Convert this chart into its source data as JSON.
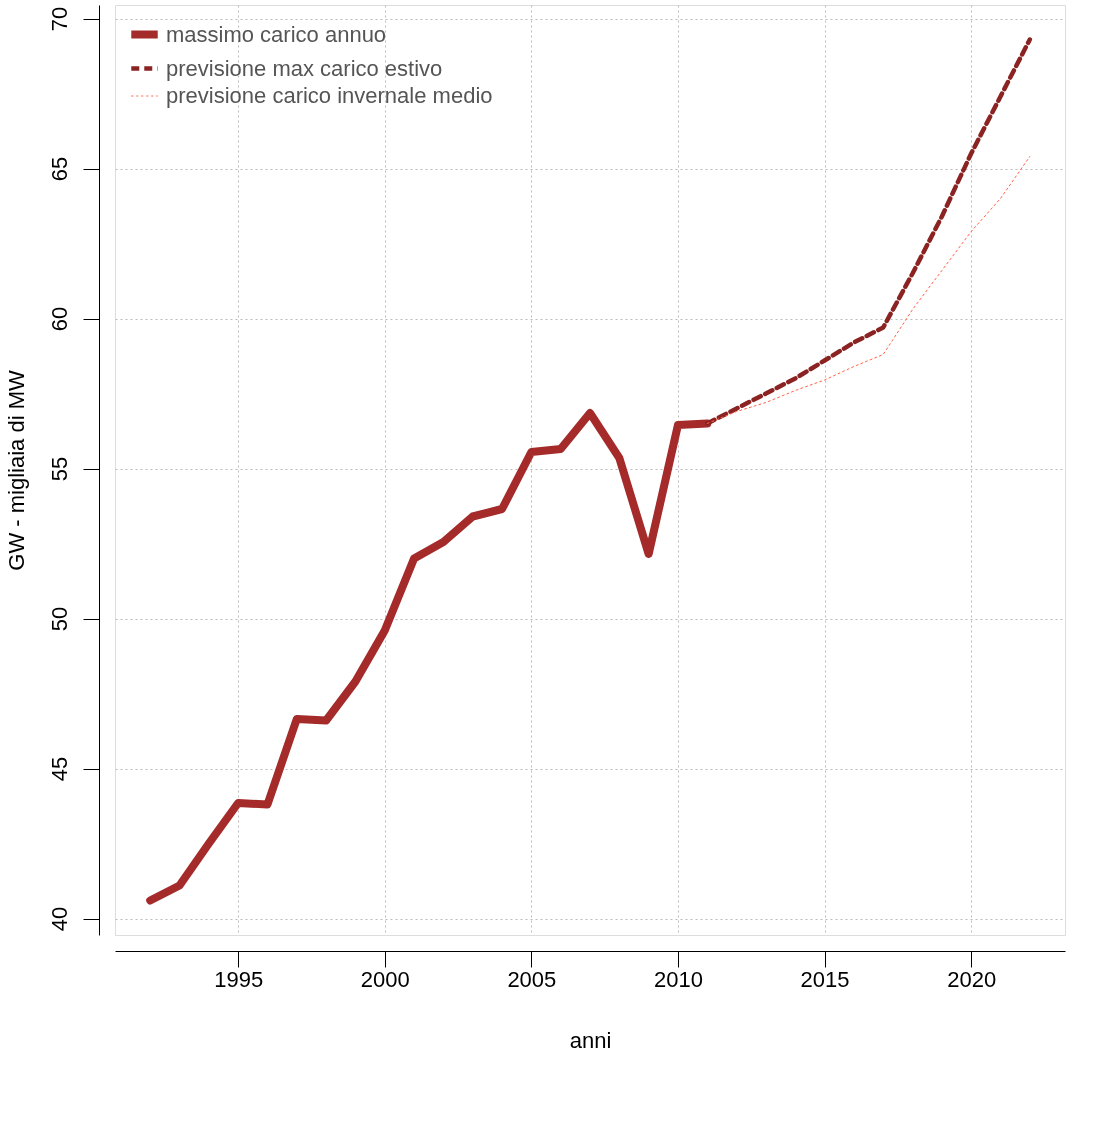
{
  "chart_data": {
    "type": "line",
    "xlabel": "anni",
    "ylabel": "GW - migliaia di MW",
    "xlim": [
      1990.8,
      2023.2
    ],
    "ylim": [
      39.45,
      70.45
    ],
    "xticks": [
      1995,
      2000,
      2005,
      2010,
      2015,
      2020
    ],
    "yticks": [
      40,
      45,
      50,
      55,
      60,
      65,
      70
    ],
    "grid": true,
    "legend": "top left",
    "series": [
      {
        "name": "massimo carico annuo",
        "color": "#a52a2a",
        "line_style": "solid",
        "x": [
          1992,
          1993,
          1994,
          1995,
          1996,
          1997,
          1998,
          1999,
          2000,
          2001,
          2002,
          2003,
          2004,
          2005,
          2006,
          2007,
          2008,
          2009,
          2010,
          2011
        ],
        "values": [
          40.6,
          41.1,
          42.5,
          43.85,
          43.8,
          46.65,
          46.6,
          47.9,
          49.6,
          52.0,
          52.55,
          53.4,
          53.65,
          55.55,
          55.65,
          56.85,
          55.35,
          52.15,
          56.45,
          56.5
        ]
      },
      {
        "name": "previsione max carico estivo",
        "color": "#8b2323",
        "line_style": "dashed",
        "x": [
          2011,
          2012,
          2013,
          2014,
          2015,
          2016,
          2017,
          2018,
          2019,
          2020,
          2021,
          2022
        ],
        "values": [
          56.5,
          57.0,
          57.5,
          58.0,
          58.6,
          59.2,
          59.7,
          61.5,
          63.4,
          65.5,
          67.4,
          69.3
        ]
      },
      {
        "name": "previsione carico invernale medio",
        "color": "#ff6347",
        "line_style": "dotted",
        "x": [
          2011,
          2012,
          2013,
          2014,
          2015,
          2016,
          2017,
          2018,
          2019,
          2020,
          2021,
          2022
        ],
        "values": [
          56.5,
          56.9,
          57.2,
          57.6,
          57.95,
          58.4,
          58.8,
          60.3,
          61.6,
          62.9,
          64.0,
          65.4
        ]
      }
    ]
  }
}
